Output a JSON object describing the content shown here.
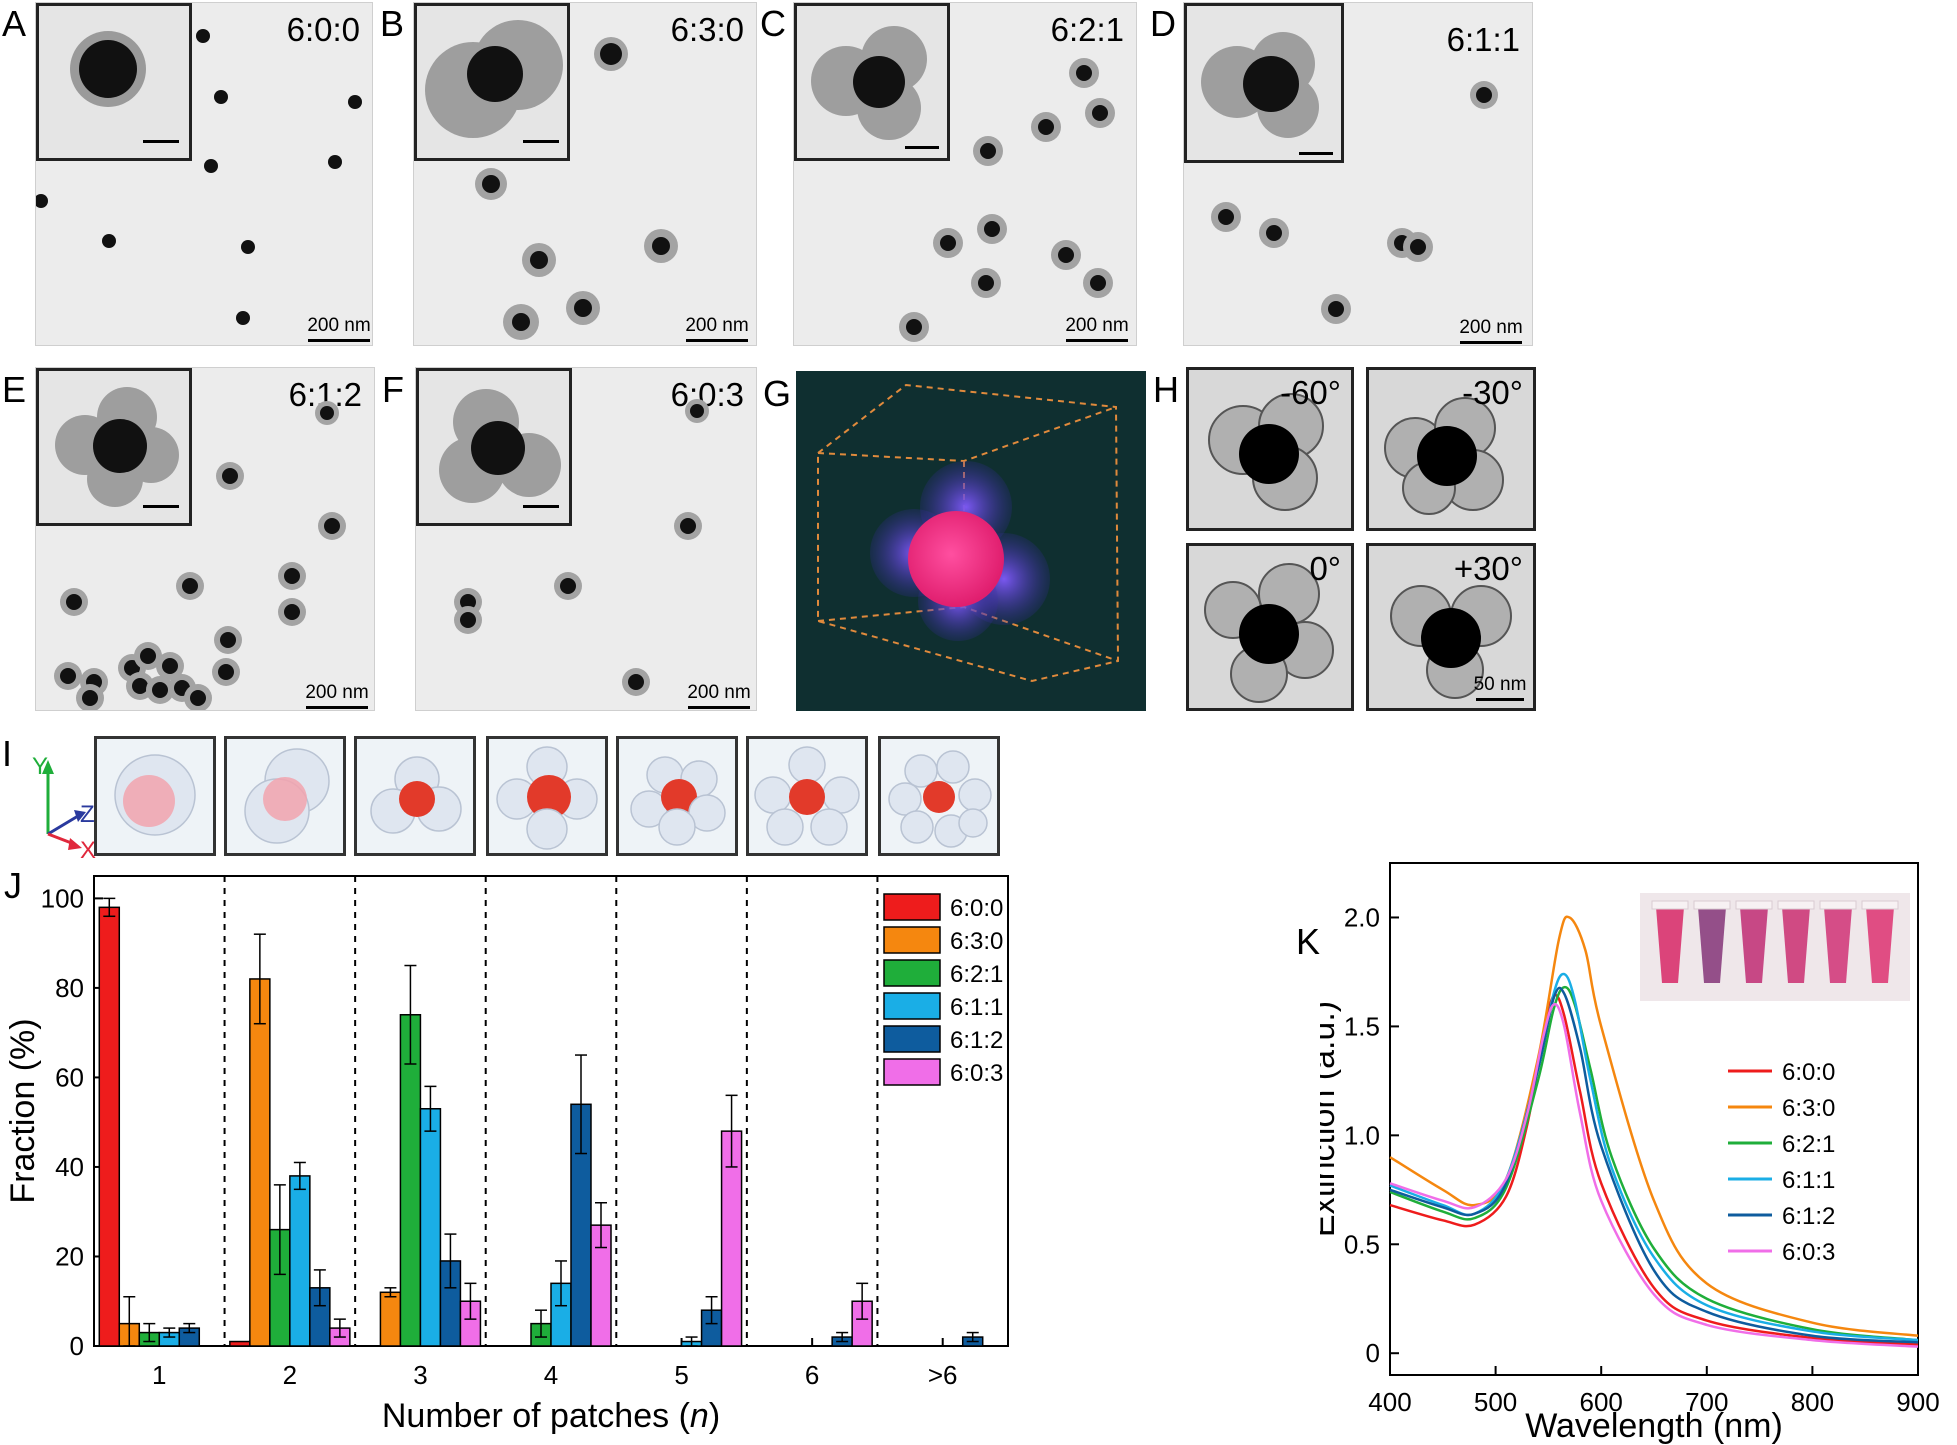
{
  "panels": {
    "A": {
      "label": "A",
      "ratio": "6:0:0",
      "scale": "200 nm"
    },
    "B": {
      "label": "B",
      "ratio": "6:3:0",
      "scale": "200 nm"
    },
    "C": {
      "label": "C",
      "ratio": "6:2:1",
      "scale": "200 nm"
    },
    "D": {
      "label": "D",
      "ratio": "6:1:1",
      "scale": "200 nm"
    },
    "E": {
      "label": "E",
      "ratio": "6:1:2",
      "scale": "200 nm"
    },
    "F": {
      "label": "F",
      "ratio": "6:0:3",
      "scale": "200 nm"
    },
    "G": {
      "label": "G"
    },
    "H": {
      "label": "H",
      "angles": [
        "-60°",
        "-30°",
        "0°",
        "+30°"
      ],
      "scale": "50 nm"
    },
    "I": {
      "label": "I",
      "axes": {
        "y": "Y",
        "z": "Z",
        "x": "X"
      }
    },
    "J": {
      "label": "J"
    },
    "K": {
      "label": "K"
    }
  },
  "colors": {
    "6:0:0": "#ee1c1c",
    "6:3:0": "#f5870f",
    "6:2:1": "#1fae3a",
    "6:1:1": "#1aaee6",
    "6:1:2": "#0e5c9e",
    "6:0:3": "#f06ee8"
  },
  "chart_data": [
    {
      "type": "bar",
      "xlabel": "Number of patches (n)",
      "ylabel": "Fraction (%)",
      "ylim": [
        0,
        105
      ],
      "yticks": [
        0,
        20,
        40,
        60,
        80,
        100
      ],
      "categories": [
        "1",
        "2",
        "3",
        "4",
        "5",
        "6",
        ">6"
      ],
      "legend": "top-right",
      "grid": false,
      "series": [
        {
          "name": "6:0:0",
          "values": [
            98,
            1,
            0,
            0,
            0,
            0,
            0
          ],
          "errors": [
            2,
            0,
            0,
            0,
            0,
            0,
            0
          ]
        },
        {
          "name": "6:3:0",
          "values": [
            5,
            82,
            12,
            0,
            0,
            0,
            0
          ],
          "errors": [
            6,
            10,
            1,
            0,
            0,
            0,
            0
          ]
        },
        {
          "name": "6:2:1",
          "values": [
            3,
            26,
            74,
            5,
            0,
            0,
            0
          ],
          "errors": [
            2,
            10,
            11,
            3,
            0,
            0,
            0
          ]
        },
        {
          "name": "6:1:1",
          "values": [
            3,
            38,
            53,
            14,
            1,
            0,
            0
          ],
          "errors": [
            1,
            3,
            5,
            5,
            1,
            0,
            0
          ]
        },
        {
          "name": "6:1:2",
          "values": [
            4,
            13,
            19,
            54,
            8,
            2,
            2
          ],
          "errors": [
            1,
            4,
            6,
            11,
            3,
            1,
            1
          ]
        },
        {
          "name": "6:0:3",
          "values": [
            0,
            4,
            10,
            27,
            48,
            10,
            0
          ],
          "errors": [
            0,
            2,
            4,
            5,
            8,
            4,
            0
          ]
        }
      ]
    },
    {
      "type": "line",
      "xlabel": "Wavelength (nm)",
      "ylabel": "Extinction (a.u.)",
      "xlim": [
        400,
        900
      ],
      "ylim": [
        -0.1,
        2.25
      ],
      "xticks": [
        400,
        500,
        600,
        700,
        800,
        900
      ],
      "yticks": [
        0,
        0.5,
        1.0,
        1.5,
        2.0
      ],
      "ytick_labels": [
        "0",
        "0.5",
        "1.0",
        "1.5",
        "2.0"
      ],
      "legend": "right",
      "series": [
        {
          "name": "6:0:0",
          "x": [
            400,
            450,
            480,
            510,
            530,
            545,
            555,
            565,
            580,
            600,
            650,
            700,
            800,
            900
          ],
          "y": [
            0.68,
            0.61,
            0.59,
            0.72,
            1.05,
            1.45,
            1.64,
            1.55,
            1.2,
            0.78,
            0.3,
            0.15,
            0.07,
            0.04
          ]
        },
        {
          "name": "6:3:0",
          "x": [
            400,
            450,
            480,
            510,
            540,
            560,
            570,
            585,
            600,
            650,
            700,
            800,
            900
          ],
          "y": [
            0.9,
            0.75,
            0.68,
            0.8,
            1.35,
            1.9,
            2.0,
            1.85,
            1.5,
            0.7,
            0.32,
            0.14,
            0.08
          ]
        },
        {
          "name": "6:2:1",
          "x": [
            400,
            450,
            480,
            510,
            540,
            555,
            565,
            575,
            590,
            610,
            650,
            700,
            800,
            900
          ],
          "y": [
            0.74,
            0.65,
            0.62,
            0.76,
            1.25,
            1.58,
            1.68,
            1.6,
            1.3,
            0.9,
            0.48,
            0.25,
            0.11,
            0.06
          ]
        },
        {
          "name": "6:1:1",
          "x": [
            400,
            450,
            480,
            510,
            540,
            555,
            565,
            575,
            590,
            610,
            650,
            700,
            800,
            900
          ],
          "y": [
            0.77,
            0.68,
            0.64,
            0.8,
            1.3,
            1.65,
            1.74,
            1.62,
            1.25,
            0.85,
            0.44,
            0.22,
            0.1,
            0.06
          ]
        },
        {
          "name": "6:1:2",
          "x": [
            400,
            450,
            480,
            510,
            540,
            555,
            565,
            580,
            600,
            650,
            700,
            800,
            900
          ],
          "y": [
            0.75,
            0.67,
            0.64,
            0.78,
            1.3,
            1.63,
            1.65,
            1.4,
            0.95,
            0.38,
            0.19,
            0.08,
            0.05
          ]
        },
        {
          "name": "6:0:3",
          "x": [
            400,
            450,
            480,
            510,
            530,
            545,
            555,
            565,
            580,
            600,
            650,
            700,
            800,
            900
          ],
          "y": [
            0.78,
            0.7,
            0.67,
            0.8,
            1.1,
            1.45,
            1.6,
            1.5,
            1.1,
            0.7,
            0.27,
            0.13,
            0.06,
            0.03
          ]
        }
      ]
    }
  ]
}
